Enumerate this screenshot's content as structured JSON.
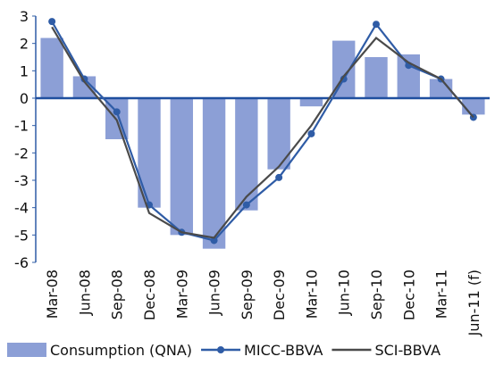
{
  "chart_data": {
    "type": "bar-line",
    "categories": [
      "Mar-08",
      "Jun-08",
      "Sep-08",
      "Dec-08",
      "Mar-09",
      "Jun-09",
      "Sep-09",
      "Dec-09",
      "Mar-10",
      "Jun-10",
      "Sep-10",
      "Dec-10",
      "Mar-11",
      "Jun-11 (f)"
    ],
    "series": [
      {
        "name": "Consumption (QNA)",
        "type": "bar",
        "color": "#8c9fd6",
        "values": [
          2.2,
          0.8,
          -1.5,
          -4.0,
          -5.0,
          -5.5,
          -4.1,
          -2.6,
          -0.3,
          2.1,
          1.5,
          1.6,
          0.7,
          -0.6
        ]
      },
      {
        "name": "MICC-BBVA",
        "type": "line",
        "markers": true,
        "color": "#2f5ca6",
        "values": [
          2.8,
          0.7,
          -0.5,
          -3.9,
          -4.9,
          -5.2,
          -3.9,
          -2.9,
          -1.3,
          0.7,
          2.7,
          1.2,
          0.7,
          -0.7
        ]
      },
      {
        "name": "SCI-BBVA",
        "type": "line",
        "markers": false,
        "color": "#4a4a4a",
        "values": [
          2.6,
          0.6,
          -0.8,
          -4.2,
          -4.9,
          -5.1,
          -3.6,
          -2.5,
          -1.0,
          0.8,
          2.2,
          1.3,
          0.7,
          -0.7
        ]
      }
    ],
    "ylim": [
      -6,
      3
    ],
    "yticks": [
      -6,
      -5,
      -4,
      -3,
      -2,
      -1,
      0,
      1,
      2,
      3
    ],
    "grid": false,
    "legend": "bottom"
  }
}
